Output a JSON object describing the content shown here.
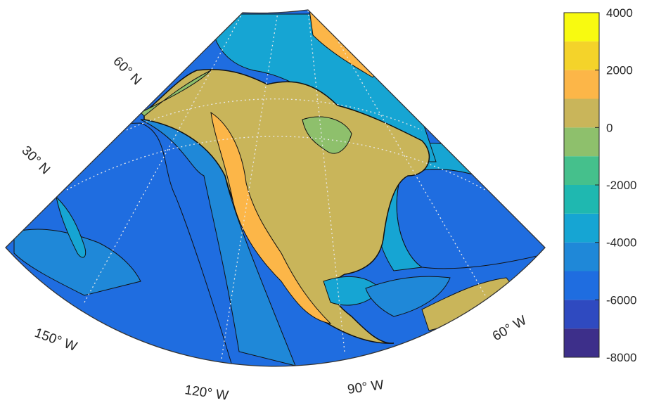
{
  "figure": {
    "labels": {
      "lat_60": "60° N",
      "lat_30": "30° N",
      "lon_150": "150° W",
      "lon_120": "120° W",
      "lon_90": "90° W",
      "lon_60": "60° W"
    }
  },
  "colorbar": {
    "ticks": [
      "4000",
      "2000",
      "0",
      "-2000",
      "-4000",
      "-6000",
      "-8000"
    ],
    "min": -8000,
    "max": 4000,
    "levels": [
      {
        "from": -8000,
        "to": -7000,
        "color": "#3d2f8a"
      },
      {
        "from": -7000,
        "to": -6000,
        "color": "#2f4ac0"
      },
      {
        "from": -6000,
        "to": -5000,
        "color": "#1f6de0"
      },
      {
        "from": -5000,
        "to": -4000,
        "color": "#1f88d8"
      },
      {
        "from": -4000,
        "to": -3000,
        "color": "#16a5d3"
      },
      {
        "from": -3000,
        "to": -2000,
        "color": "#1fb8b0"
      },
      {
        "from": -2000,
        "to": -1000,
        "color": "#45c08c"
      },
      {
        "from": -1000,
        "to": 0,
        "color": "#8ec06c"
      },
      {
        "from": 0,
        "to": 1000,
        "color": "#c9b55a"
      },
      {
        "from": 1000,
        "to": 2000,
        "color": "#fcb648"
      },
      {
        "from": 2000,
        "to": 3000,
        "color": "#f4d32a"
      },
      {
        "from": 3000,
        "to": 4000,
        "color": "#f8fa10"
      }
    ]
  },
  "map": {
    "projection": "conic",
    "graticule": "dotted",
    "lat_range": [
      15,
      75
    ],
    "lon_range": [
      -160,
      -55
    ]
  }
}
